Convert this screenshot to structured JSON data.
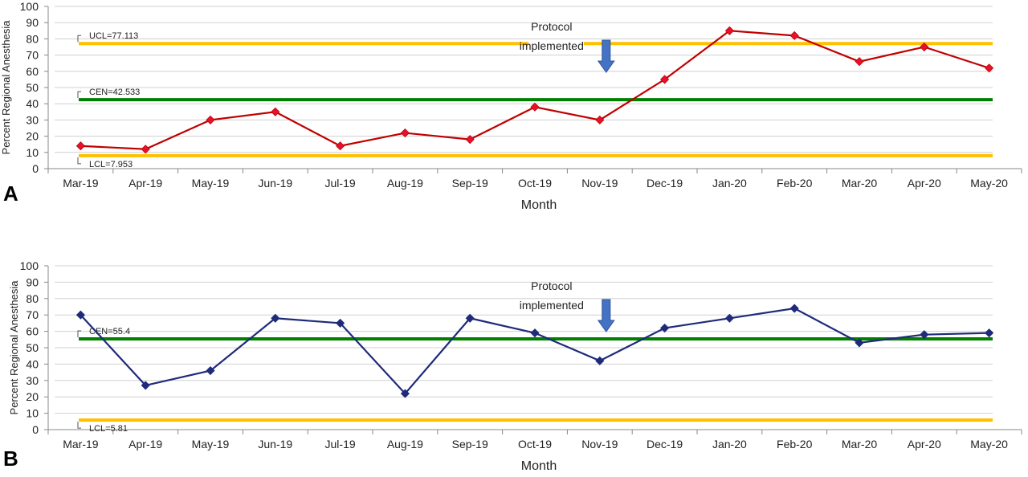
{
  "chart_data": [
    {
      "type": "line",
      "panel_label": "A",
      "categories": [
        "Mar-19",
        "Apr-19",
        "May-19",
        "Jun-19",
        "Jul-19",
        "Aug-19",
        "Sep-19",
        "Oct-19",
        "Nov-19",
        "Dec-19",
        "Jan-20",
        "Feb-20",
        "Mar-20",
        "Apr-20",
        "May-20"
      ],
      "series": [
        {
          "values": [
            14,
            12,
            30,
            35,
            14,
            22,
            18,
            38,
            30,
            55,
            85,
            82,
            66,
            75,
            62
          ],
          "color": "#c00000",
          "marker_color": "#e8112d"
        }
      ],
      "reference_lines": [
        {
          "label": "UCL=77.113",
          "value": 77.113,
          "color": "#ffc000",
          "start_index": 0,
          "end_index": 7,
          "resume_index": 8
        },
        {
          "label": "CEN=42.533",
          "value": 42.533,
          "color": "#008000"
        },
        {
          "label": "LCL=7.953",
          "value": 7.953,
          "color": "#ffc000"
        }
      ],
      "annotation": {
        "line1": "Protocol",
        "line2": "implemented",
        "after_index": 8
      },
      "xlabel": "Month",
      "ylabel": "Percent Regional Anesthesia",
      "ylim": [
        0,
        100
      ],
      "yticks": [
        0,
        10,
        20,
        30,
        40,
        50,
        60,
        70,
        80,
        90,
        100
      ],
      "grid": true
    },
    {
      "type": "line",
      "panel_label": "B",
      "categories": [
        "Mar-19",
        "Apr-19",
        "May-19",
        "Jun-19",
        "Jul-19",
        "Aug-19",
        "Sep-19",
        "Oct-19",
        "Nov-19",
        "Dec-19",
        "Jan-20",
        "Feb-20",
        "Mar-20",
        "Apr-20",
        "May-20"
      ],
      "series": [
        {
          "values": [
            70,
            27,
            36,
            68,
            65,
            22,
            68,
            59,
            42,
            62,
            68,
            74,
            53,
            58,
            59
          ],
          "color": "#1f2a7a",
          "marker_color": "#1f2a7a"
        }
      ],
      "reference_lines": [
        {
          "label": "CEN=55.4",
          "value": 55.4,
          "color": "#008000"
        },
        {
          "label": "LCL=5.81",
          "value": 5.81,
          "color": "#ffc000"
        }
      ],
      "annotation": {
        "line1": "Protocol",
        "line2": "implemented",
        "after_index": 8
      },
      "xlabel": "Month",
      "ylabel": "Percent Regional Anesthesia",
      "ylim": [
        0,
        100
      ],
      "yticks": [
        0,
        10,
        20,
        30,
        40,
        50,
        60,
        70,
        80,
        90,
        100
      ],
      "grid": true
    }
  ],
  "colors": {
    "arrow": "#4472c4",
    "grid": "#d0d0d0",
    "axis": "#888888"
  }
}
